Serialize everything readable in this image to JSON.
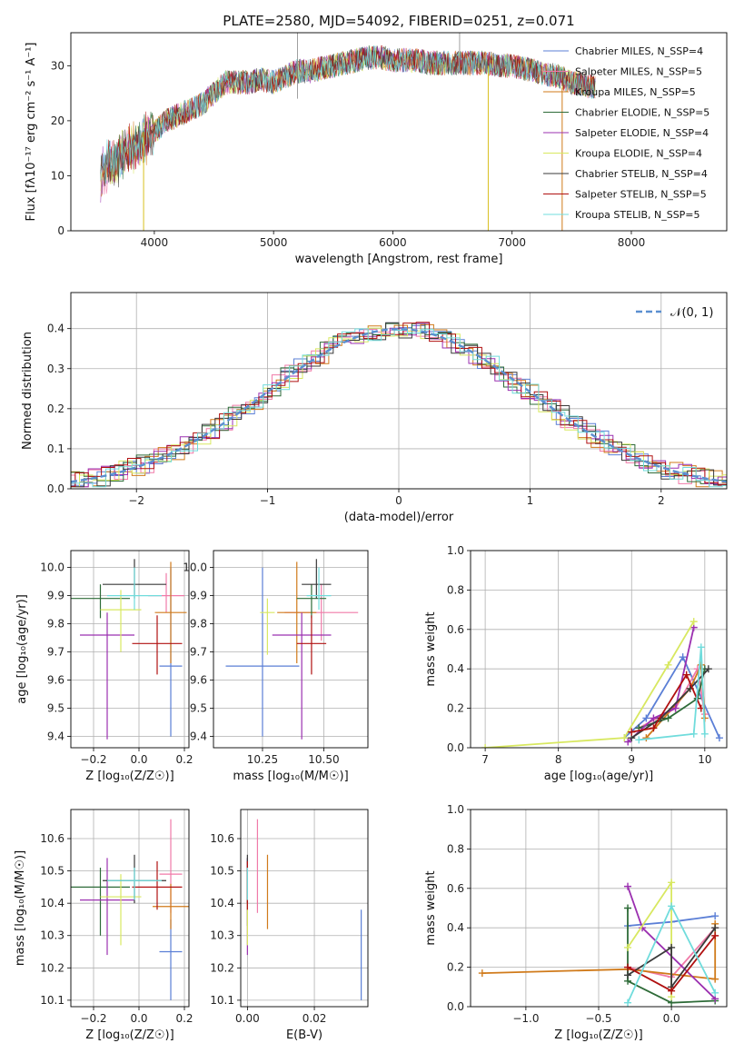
{
  "chart_data": [
    {
      "id": "spectrum",
      "type": "line",
      "title": "PLATE=2580, MJD=54092, FIBERID=0251, z=0.071",
      "xlabel": "wavelength [Angstrom, rest frame]",
      "ylabel": "Flux [fλ10⁻¹⁷ erg cm⁻² s⁻¹ A⁻¹]",
      "xlim": [
        3300,
        8800
      ],
      "ylim": [
        0,
        36
      ],
      "xticks": [
        4000,
        5000,
        6000,
        7000,
        8000
      ],
      "yticks": [
        0,
        10,
        20,
        30
      ],
      "grid": false,
      "legend_position": "top-right",
      "spectrum_points": [
        [
          3550,
          10
        ],
        [
          3600,
          12
        ],
        [
          3700,
          13
        ],
        [
          3800,
          15
        ],
        [
          3900,
          16
        ],
        [
          4000,
          18
        ],
        [
          4100,
          20
        ],
        [
          4200,
          21
        ],
        [
          4300,
          22
        ],
        [
          4400,
          23
        ],
        [
          4500,
          25
        ],
        [
          4600,
          27
        ],
        [
          4700,
          27
        ],
        [
          4800,
          27
        ],
        [
          4900,
          27.5
        ],
        [
          5000,
          27
        ],
        [
          5100,
          28
        ],
        [
          5200,
          29
        ],
        [
          5300,
          29
        ],
        [
          5400,
          29.5
        ],
        [
          5500,
          30
        ],
        [
          5600,
          30.5
        ],
        [
          5700,
          31
        ],
        [
          5800,
          31.5
        ],
        [
          5900,
          31.5
        ],
        [
          6000,
          31
        ],
        [
          6100,
          31
        ],
        [
          6200,
          31
        ],
        [
          6300,
          30.5
        ],
        [
          6400,
          30.5
        ],
        [
          6500,
          30.5
        ],
        [
          6600,
          30.5
        ],
        [
          6700,
          30.5
        ],
        [
          6800,
          30.5
        ],
        [
          6900,
          30
        ],
        [
          7000,
          30
        ],
        [
          7100,
          29.5
        ],
        [
          7200,
          29
        ],
        [
          7300,
          28.5
        ],
        [
          7400,
          28
        ],
        [
          7500,
          27
        ],
        [
          7600,
          26.5
        ],
        [
          7700,
          26
        ]
      ],
      "series": [
        {
          "name": "Chabrier MILES, N_SSP=4",
          "color": "#5b7fd6"
        },
        {
          "name": "Salpeter MILES, N_SSP=5",
          "color": "#f07aa8"
        },
        {
          "name": "Kroupa MILES, N_SSP=5",
          "color": "#d07a1a"
        },
        {
          "name": "Chabrier ELODIE, N_SSP=5",
          "color": "#2e6b38"
        },
        {
          "name": "Salpeter ELODIE, N_SSP=4",
          "color": "#9b30b0"
        },
        {
          "name": "Kroupa ELODIE, N_SSP=4",
          "color": "#d8e860"
        },
        {
          "name": "Chabrier STELIB, N_SSP=4",
          "color": "#3a3a3a"
        },
        {
          "name": "Salpeter STELIB, N_SSP=5",
          "color": "#b01010"
        },
        {
          "name": "Kroupa STELIB, N_SSP=5",
          "color": "#70dcdc"
        }
      ]
    },
    {
      "id": "residuals",
      "type": "line",
      "xlabel": "(data-model)/error",
      "ylabel": "Normed distribution",
      "xlim": [
        -2.5,
        2.5
      ],
      "ylim": [
        0,
        0.49
      ],
      "xticks": [
        -2,
        -1,
        0,
        1,
        2
      ],
      "yticks": [
        0.0,
        0.1,
        0.2,
        0.3,
        0.4
      ],
      "grid": true,
      "legend": "𝒩(0, 1)",
      "legend_position": "top-right",
      "normal_curve": {
        "mean": 0,
        "std": 1,
        "color": "#5b8fd0"
      }
    },
    {
      "id": "age-vs-Z",
      "type": "scatter",
      "xlabel": "Z [log₁₀(Z/Z☉)]",
      "ylabel": "age  [log₁₀(age/yr)]",
      "xlim": [
        -0.3,
        0.22
      ],
      "ylim": [
        9.36,
        10.06
      ],
      "xticks": [
        -0.2,
        0.0,
        0.2
      ],
      "yticks": [
        9.4,
        9.5,
        9.6,
        9.7,
        9.8,
        9.9,
        10.0
      ],
      "grid": true,
      "points": [
        {
          "x": 0.14,
          "y": 9.65,
          "xerr": 0.05,
          "yerr": [
            0.25,
            0.35
          ],
          "color": "#5b7fd6"
        },
        {
          "x": 0.12,
          "y": 9.9,
          "xerr": 0.08,
          "yerr": [
            0.06,
            0.08
          ],
          "color": "#f07aa8"
        },
        {
          "x": 0.14,
          "y": 9.84,
          "xerr": 0.07,
          "yerr": [
            0.18,
            0.18
          ],
          "color": "#d07a1a"
        },
        {
          "x": -0.17,
          "y": 9.89,
          "xerr": 0.13,
          "yerr": [
            0.07,
            0.05
          ],
          "color": "#2e6b38"
        },
        {
          "x": -0.14,
          "y": 9.76,
          "xerr": 0.12,
          "yerr": [
            0.37,
            0.08
          ],
          "color": "#9b30b0"
        },
        {
          "x": -0.08,
          "y": 9.85,
          "xerr": 0.09,
          "yerr": [
            0.15,
            0.07
          ],
          "color": "#d8e860"
        },
        {
          "x": -0.02,
          "y": 9.94,
          "xerr": 0.14,
          "yerr": [
            0.05,
            0.09
          ],
          "color": "#3a3a3a"
        },
        {
          "x": 0.08,
          "y": 9.73,
          "xerr": 0.11,
          "yerr": [
            0.11,
            0.1
          ],
          "color": "#b01010"
        },
        {
          "x": -0.02,
          "y": 9.9,
          "xerr": 0.12,
          "yerr": [
            0.05,
            0.1
          ],
          "color": "#70dcdc"
        }
      ]
    },
    {
      "id": "age-vs-mass",
      "type": "scatter",
      "xlabel": "mass [log₁₀(M/M☉)]",
      "ylabel": "",
      "xlim": [
        10.05,
        10.68
      ],
      "ylim": [
        9.36,
        10.06
      ],
      "xticks": [
        10.25,
        10.5
      ],
      "yticks": [
        9.4,
        9.5,
        9.6,
        9.7,
        9.8,
        9.9,
        10.0
      ],
      "grid": true,
      "points": [
        {
          "x": 10.25,
          "y": 9.65,
          "xerr": 0.15,
          "yerr": [
            0.25,
            0.35
          ],
          "color": "#5b7fd6"
        },
        {
          "x": 10.49,
          "y": 9.84,
          "xerr": 0.15,
          "yerr": [
            0.1,
            0.1
          ],
          "color": "#f07aa8"
        },
        {
          "x": 10.39,
          "y": 9.84,
          "xerr": 0.08,
          "yerr": [
            0.18,
            0.18
          ],
          "color": "#d07a1a"
        },
        {
          "x": 10.45,
          "y": 9.89,
          "xerr": 0.06,
          "yerr": [
            0.07,
            0.05
          ],
          "color": "#2e6b38"
        },
        {
          "x": 10.41,
          "y": 9.76,
          "xerr": 0.12,
          "yerr": [
            0.37,
            0.08
          ],
          "color": "#9b30b0"
        },
        {
          "x": 10.27,
          "y": 9.84,
          "xerr": 0.03,
          "yerr": [
            0.15,
            0.05
          ],
          "color": "#d8e860"
        },
        {
          "x": 10.47,
          "y": 9.94,
          "xerr": 0.06,
          "yerr": [
            0.05,
            0.09
          ],
          "color": "#3a3a3a"
        },
        {
          "x": 10.45,
          "y": 9.73,
          "xerr": 0.06,
          "yerr": [
            0.11,
            0.1
          ],
          "color": "#b01010"
        },
        {
          "x": 10.48,
          "y": 9.9,
          "xerr": 0.05,
          "yerr": [
            0.05,
            0.1
          ],
          "color": "#70dcdc"
        }
      ]
    },
    {
      "id": "massweight-vs-age",
      "type": "line",
      "xlabel": "age  [log₁₀(age/yr)]",
      "ylabel": "mass weight",
      "xlim": [
        6.8,
        10.3
      ],
      "ylim": [
        0,
        1.0
      ],
      "xticks": [
        7,
        8,
        9,
        10
      ],
      "yticks": [
        0.0,
        0.2,
        0.4,
        0.6,
        0.8,
        1.0
      ],
      "grid": true,
      "series": [
        {
          "color": "#5b7fd6",
          "x": [
            8.9,
            9.2,
            9.7,
            10.2
          ],
          "y": [
            0.05,
            0.15,
            0.46,
            0.05
          ]
        },
        {
          "color": "#f07aa8",
          "x": [
            9.1,
            9.6,
            9.9,
            10.0
          ],
          "y": [
            0.1,
            0.2,
            0.4,
            0.17
          ]
        },
        {
          "color": "#d07a1a",
          "x": [
            9.2,
            9.8,
            9.95,
            10.0
          ],
          "y": [
            0.05,
            0.3,
            0.42,
            0.15
          ]
        },
        {
          "color": "#2e6b38",
          "x": [
            9.1,
            9.5,
            9.9,
            10.0
          ],
          "y": [
            0.1,
            0.15,
            0.25,
            0.4
          ]
        },
        {
          "color": "#9b30b0",
          "x": [
            8.95,
            9.3,
            9.6,
            9.85
          ],
          "y": [
            0.03,
            0.15,
            0.2,
            0.61
          ]
        },
        {
          "color": "#d8e860",
          "x": [
            7.0,
            8.9,
            9.5,
            9.85
          ],
          "y": [
            0.0,
            0.05,
            0.42,
            0.64
          ]
        },
        {
          "color": "#3a3a3a",
          "x": [
            9.0,
            9.4,
            9.8,
            10.05
          ],
          "y": [
            0.05,
            0.15,
            0.3,
            0.4
          ]
        },
        {
          "color": "#b01010",
          "x": [
            9.0,
            9.3,
            9.75,
            9.95
          ],
          "y": [
            0.08,
            0.1,
            0.37,
            0.2
          ]
        },
        {
          "color": "#70dcdc",
          "x": [
            9.1,
            9.85,
            9.95,
            10.0
          ],
          "y": [
            0.04,
            0.07,
            0.51,
            0.07
          ]
        }
      ]
    },
    {
      "id": "mass-vs-Z",
      "type": "scatter",
      "xlabel": "Z [log₁₀(Z/Z☉)]",
      "ylabel": "mass [log₁₀(M/M☉)]",
      "xlim": [
        -0.3,
        0.22
      ],
      "ylim": [
        10.08,
        10.69
      ],
      "xticks": [
        -0.2,
        0.0,
        0.2
      ],
      "yticks": [
        10.1,
        10.2,
        10.3,
        10.4,
        10.5,
        10.6
      ],
      "grid": true,
      "points": [
        {
          "x": 0.14,
          "y": 10.25,
          "xerr": 0.05,
          "yerr": [
            0.15,
            0.1
          ],
          "color": "#5b7fd6"
        },
        {
          "x": 0.14,
          "y": 10.49,
          "xerr": 0.05,
          "yerr": [
            0.12,
            0.17
          ],
          "color": "#f07aa8"
        },
        {
          "x": 0.14,
          "y": 10.39,
          "xerr": 0.08,
          "yerr": [
            0.07,
            0.07
          ],
          "color": "#d07a1a"
        },
        {
          "x": -0.17,
          "y": 10.45,
          "xerr": 0.13,
          "yerr": [
            0.15,
            0.06
          ],
          "color": "#2e6b38"
        },
        {
          "x": -0.14,
          "y": 10.41,
          "xerr": 0.12,
          "yerr": [
            0.17,
            0.13
          ],
          "color": "#9b30b0"
        },
        {
          "x": -0.08,
          "y": 10.42,
          "xerr": 0.09,
          "yerr": [
            0.15,
            0.07
          ],
          "color": "#d8e860"
        },
        {
          "x": -0.02,
          "y": 10.47,
          "xerr": 0.14,
          "yerr": [
            0.07,
            0.08
          ],
          "color": "#3a3a3a"
        },
        {
          "x": 0.08,
          "y": 10.45,
          "xerr": 0.11,
          "yerr": [
            0.07,
            0.08
          ],
          "color": "#b01010"
        },
        {
          "x": -0.02,
          "y": 10.47,
          "xerr": 0.12,
          "yerr": [
            0.06,
            0.04
          ],
          "color": "#70dcdc"
        }
      ]
    },
    {
      "id": "mass-vs-ebv",
      "type": "scatter",
      "xlabel": "E(B-V)",
      "ylabel": "",
      "xlim": [
        -0.002,
        0.036
      ],
      "ylim": [
        10.08,
        10.69
      ],
      "xticks": [
        0.0,
        0.02
      ],
      "yticks": [
        10.1,
        10.2,
        10.3,
        10.4,
        10.5,
        10.6
      ],
      "grid": true,
      "points": [
        {
          "x": 0.034,
          "y": 10.25,
          "xerr": 0,
          "yerr": [
            0.15,
            0.13
          ],
          "color": "#5b7fd6"
        },
        {
          "x": 0.003,
          "y": 10.49,
          "xerr": 0,
          "yerr": [
            0.12,
            0.17
          ],
          "color": "#f07aa8"
        },
        {
          "x": 0.006,
          "y": 10.43,
          "xerr": 0,
          "yerr": [
            0.11,
            0.12
          ],
          "color": "#d07a1a"
        },
        {
          "x": 0.0,
          "y": 10.45,
          "xerr": 0,
          "yerr": [
            0.12,
            0.09
          ],
          "color": "#2e6b38"
        },
        {
          "x": 0.0,
          "y": 10.41,
          "xerr": 0,
          "yerr": [
            0.17,
            0.13
          ],
          "color": "#9b30b0"
        },
        {
          "x": 0.0,
          "y": 10.42,
          "xerr": 0,
          "yerr": [
            0.15,
            0.07
          ],
          "color": "#d8e860"
        },
        {
          "x": 0.0,
          "y": 10.47,
          "xerr": 0,
          "yerr": [
            0.07,
            0.08
          ],
          "color": "#3a3a3a"
        },
        {
          "x": 0.0,
          "y": 10.45,
          "xerr": 0,
          "yerr": [
            0.07,
            0.08
          ],
          "color": "#b01010"
        },
        {
          "x": 0.0,
          "y": 10.47,
          "xerr": 0,
          "yerr": [
            0.06,
            0.04
          ],
          "color": "#70dcdc"
        }
      ]
    },
    {
      "id": "massweight-vs-Z",
      "type": "line",
      "xlabel": "Z [log₁₀(Z/Z☉)]",
      "ylabel": "mass weight",
      "xlim": [
        -1.38,
        0.38
      ],
      "ylim": [
        0,
        1.0
      ],
      "xticks": [
        -1.0,
        -0.5,
        0.0
      ],
      "yticks": [
        0.0,
        0.2,
        0.4,
        0.6,
        0.8,
        1.0
      ],
      "grid": true,
      "series": [
        {
          "color": "#5b7fd6",
          "x": [
            -0.3,
            0.0,
            0.3
          ],
          "y": [
            0.41,
            0.43,
            0.46
          ]
        },
        {
          "color": "#f07aa8",
          "x": [
            -0.3,
            0.0,
            0.3
          ],
          "y": [
            0.2,
            0.15,
            0.4
          ]
        },
        {
          "color": "#d07a1a",
          "x": [
            -1.3,
            -0.3,
            0.3,
            0.3
          ],
          "y": [
            0.17,
            0.19,
            0.14,
            0.42
          ]
        },
        {
          "color": "#2e6b38",
          "x": [
            -0.3,
            -0.3,
            0.0,
            0.3
          ],
          "y": [
            0.5,
            0.13,
            0.02,
            0.03
          ]
        },
        {
          "color": "#9b30b0",
          "x": [
            -0.3,
            -0.2,
            0.3
          ],
          "y": [
            0.61,
            0.4,
            0.04
          ]
        },
        {
          "color": "#d8e860",
          "x": [
            -0.3,
            0.0,
            0.0
          ],
          "y": [
            0.3,
            0.63,
            0.05
          ]
        },
        {
          "color": "#3a3a3a",
          "x": [
            -0.3,
            0.0,
            0.0,
            0.3
          ],
          "y": [
            0.16,
            0.3,
            0.1,
            0.4
          ]
        },
        {
          "color": "#b01010",
          "x": [
            -0.3,
            0.0,
            0.3
          ],
          "y": [
            0.2,
            0.08,
            0.36
          ]
        },
        {
          "color": "#70dcdc",
          "x": [
            -0.3,
            0.0,
            0.3
          ],
          "y": [
            0.02,
            0.51,
            0.07
          ]
        }
      ]
    }
  ]
}
